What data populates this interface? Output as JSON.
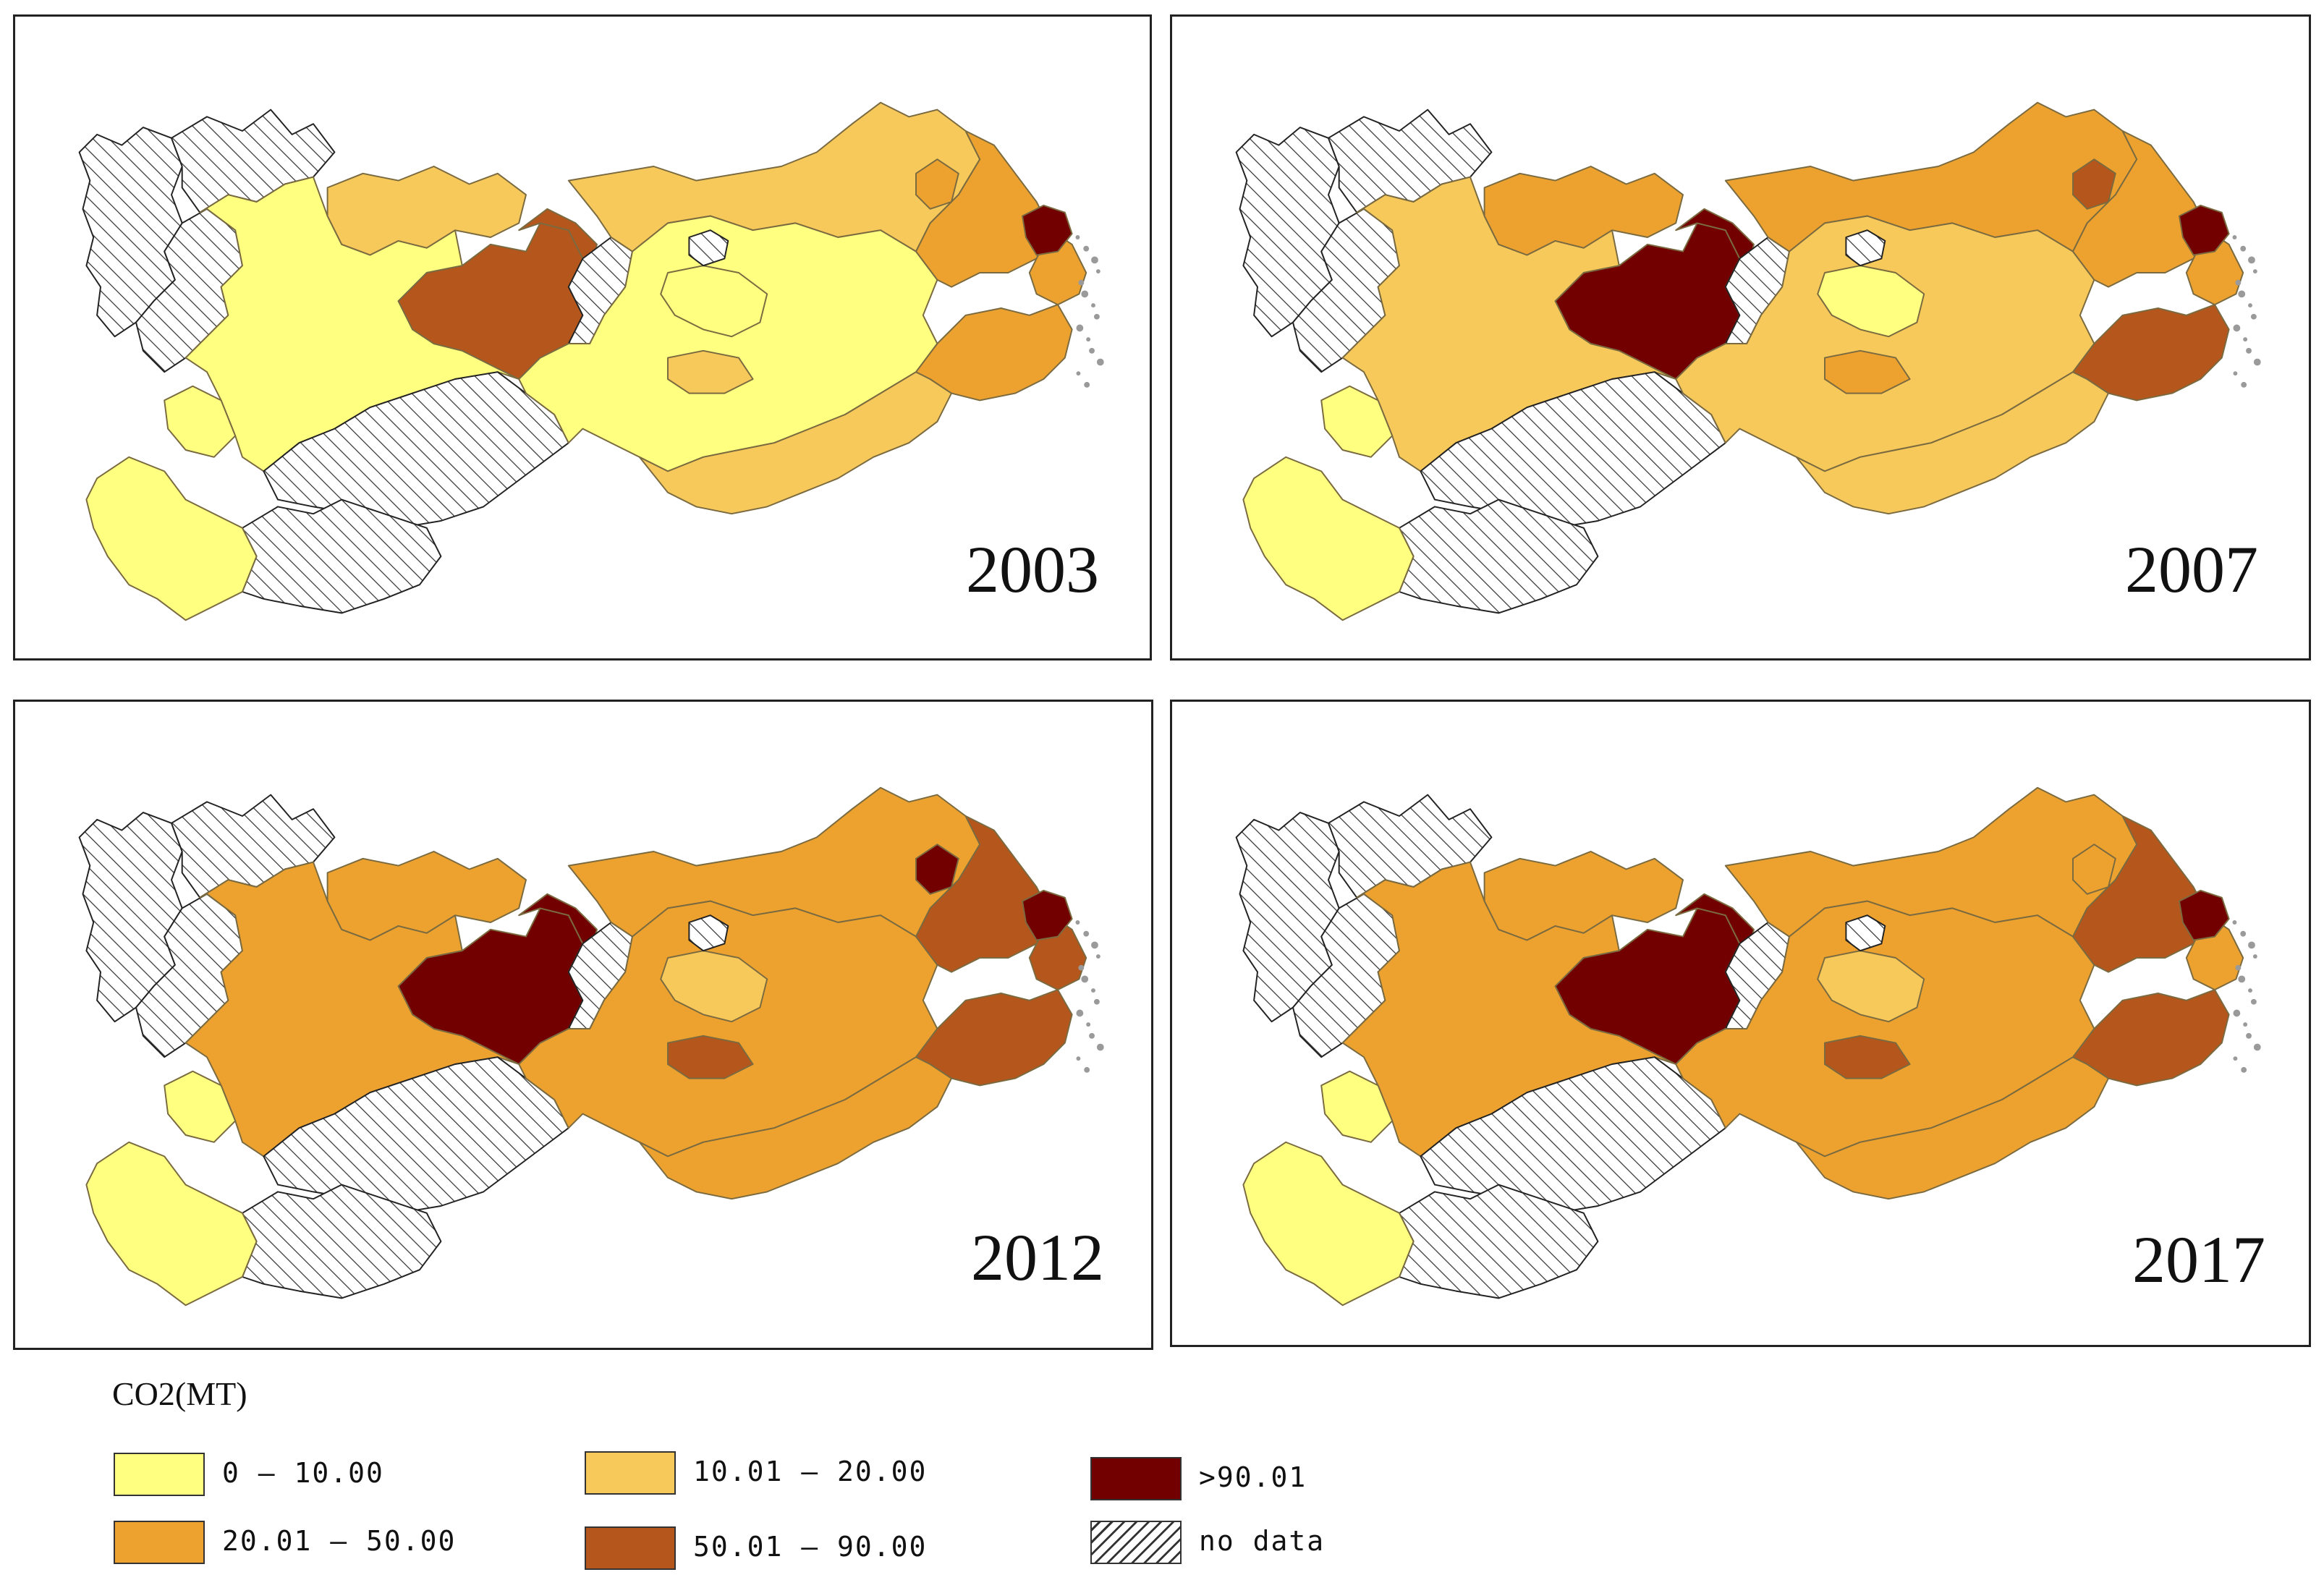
{
  "panels": [
    {
      "year": "2003",
      "fills": {
        "bigWest": "nodata",
        "northwest": "nodata",
        "westBelt": "nodata",
        "southWest": "c1",
        "central": "c4",
        "centralHigh": "c4",
        "lakeStrip": "nodata",
        "middle": "c1",
        "middleNorth": "c2",
        "east": "c1",
        "eastNorth": "c2",
        "coastHub": "c5",
        "coastRing": "c3",
        "coastSouth": "c3",
        "southBelt": "nodata",
        "southeast": "c2",
        "southHill": "nodata",
        "westPatch": "c1",
        "lakeSmall": "nodata",
        "eastMid": "c1",
        "midSouth": "c2",
        "redSpot": "c3",
        "coastEast": "c3"
      }
    },
    {
      "year": "2007",
      "fills": {
        "bigWest": "nodata",
        "northwest": "nodata",
        "westBelt": "nodata",
        "southWest": "c1",
        "central": "c5",
        "centralHigh": "c5",
        "lakeStrip": "nodata",
        "middle": "c2",
        "middleNorth": "c3",
        "east": "c2",
        "eastNorth": "c3",
        "coastHub": "c5",
        "coastRing": "c3",
        "coastSouth": "c4",
        "southBelt": "nodata",
        "southeast": "c2",
        "southHill": "nodata",
        "westPatch": "c1",
        "lakeSmall": "nodata",
        "eastMid": "c1",
        "midSouth": "c3",
        "redSpot": "c4",
        "coastEast": "c3"
      }
    },
    {
      "year": "2012",
      "fills": {
        "bigWest": "nodata",
        "northwest": "nodata",
        "westBelt": "nodata",
        "southWest": "c1",
        "central": "c5",
        "centralHigh": "c5",
        "lakeStrip": "nodata",
        "middle": "c3",
        "middleNorth": "c3",
        "east": "c3",
        "eastNorth": "c3",
        "coastHub": "c5",
        "coastRing": "c4",
        "coastSouth": "c4",
        "southBelt": "nodata",
        "southeast": "c3",
        "southHill": "nodata",
        "westPatch": "c1",
        "lakeSmall": "nodata",
        "eastMid": "c2",
        "midSouth": "c4",
        "redSpot": "c5",
        "coastEast": "c4"
      }
    },
    {
      "year": "2017",
      "fills": {
        "bigWest": "nodata",
        "northwest": "nodata",
        "westBelt": "nodata",
        "southWest": "c1",
        "central": "c5",
        "centralHigh": "c5",
        "lakeStrip": "nodata",
        "middle": "c3",
        "middleNorth": "c3",
        "east": "c3",
        "eastNorth": "c3",
        "coastHub": "c5",
        "coastRing": "c4",
        "coastSouth": "c4",
        "southBelt": "nodata",
        "southeast": "c3",
        "southHill": "nodata",
        "westPatch": "c1",
        "lakeSmall": "nodata",
        "eastMid": "c2",
        "midSouth": "c4",
        "redSpot": "c3",
        "coastEast": "c3"
      }
    }
  ],
  "legend": {
    "title": "CO2(MT)",
    "items": [
      {
        "key": "c1",
        "label": "0 — 10.00",
        "color": "#FFFF80"
      },
      {
        "key": "c2",
        "label": "10.01 — 20.00",
        "color": "#F7C85A"
      },
      {
        "key": "c5",
        "label": ">90.01",
        "color": "#730000"
      },
      {
        "key": "c3",
        "label": "20.01 — 50.00",
        "color": "#EDA22F"
      },
      {
        "key": "c4",
        "label": "50.01 — 90.00",
        "color": "#B5561C"
      },
      {
        "key": "nodata",
        "label": "no data",
        "color": "hatch"
      }
    ]
  }
}
